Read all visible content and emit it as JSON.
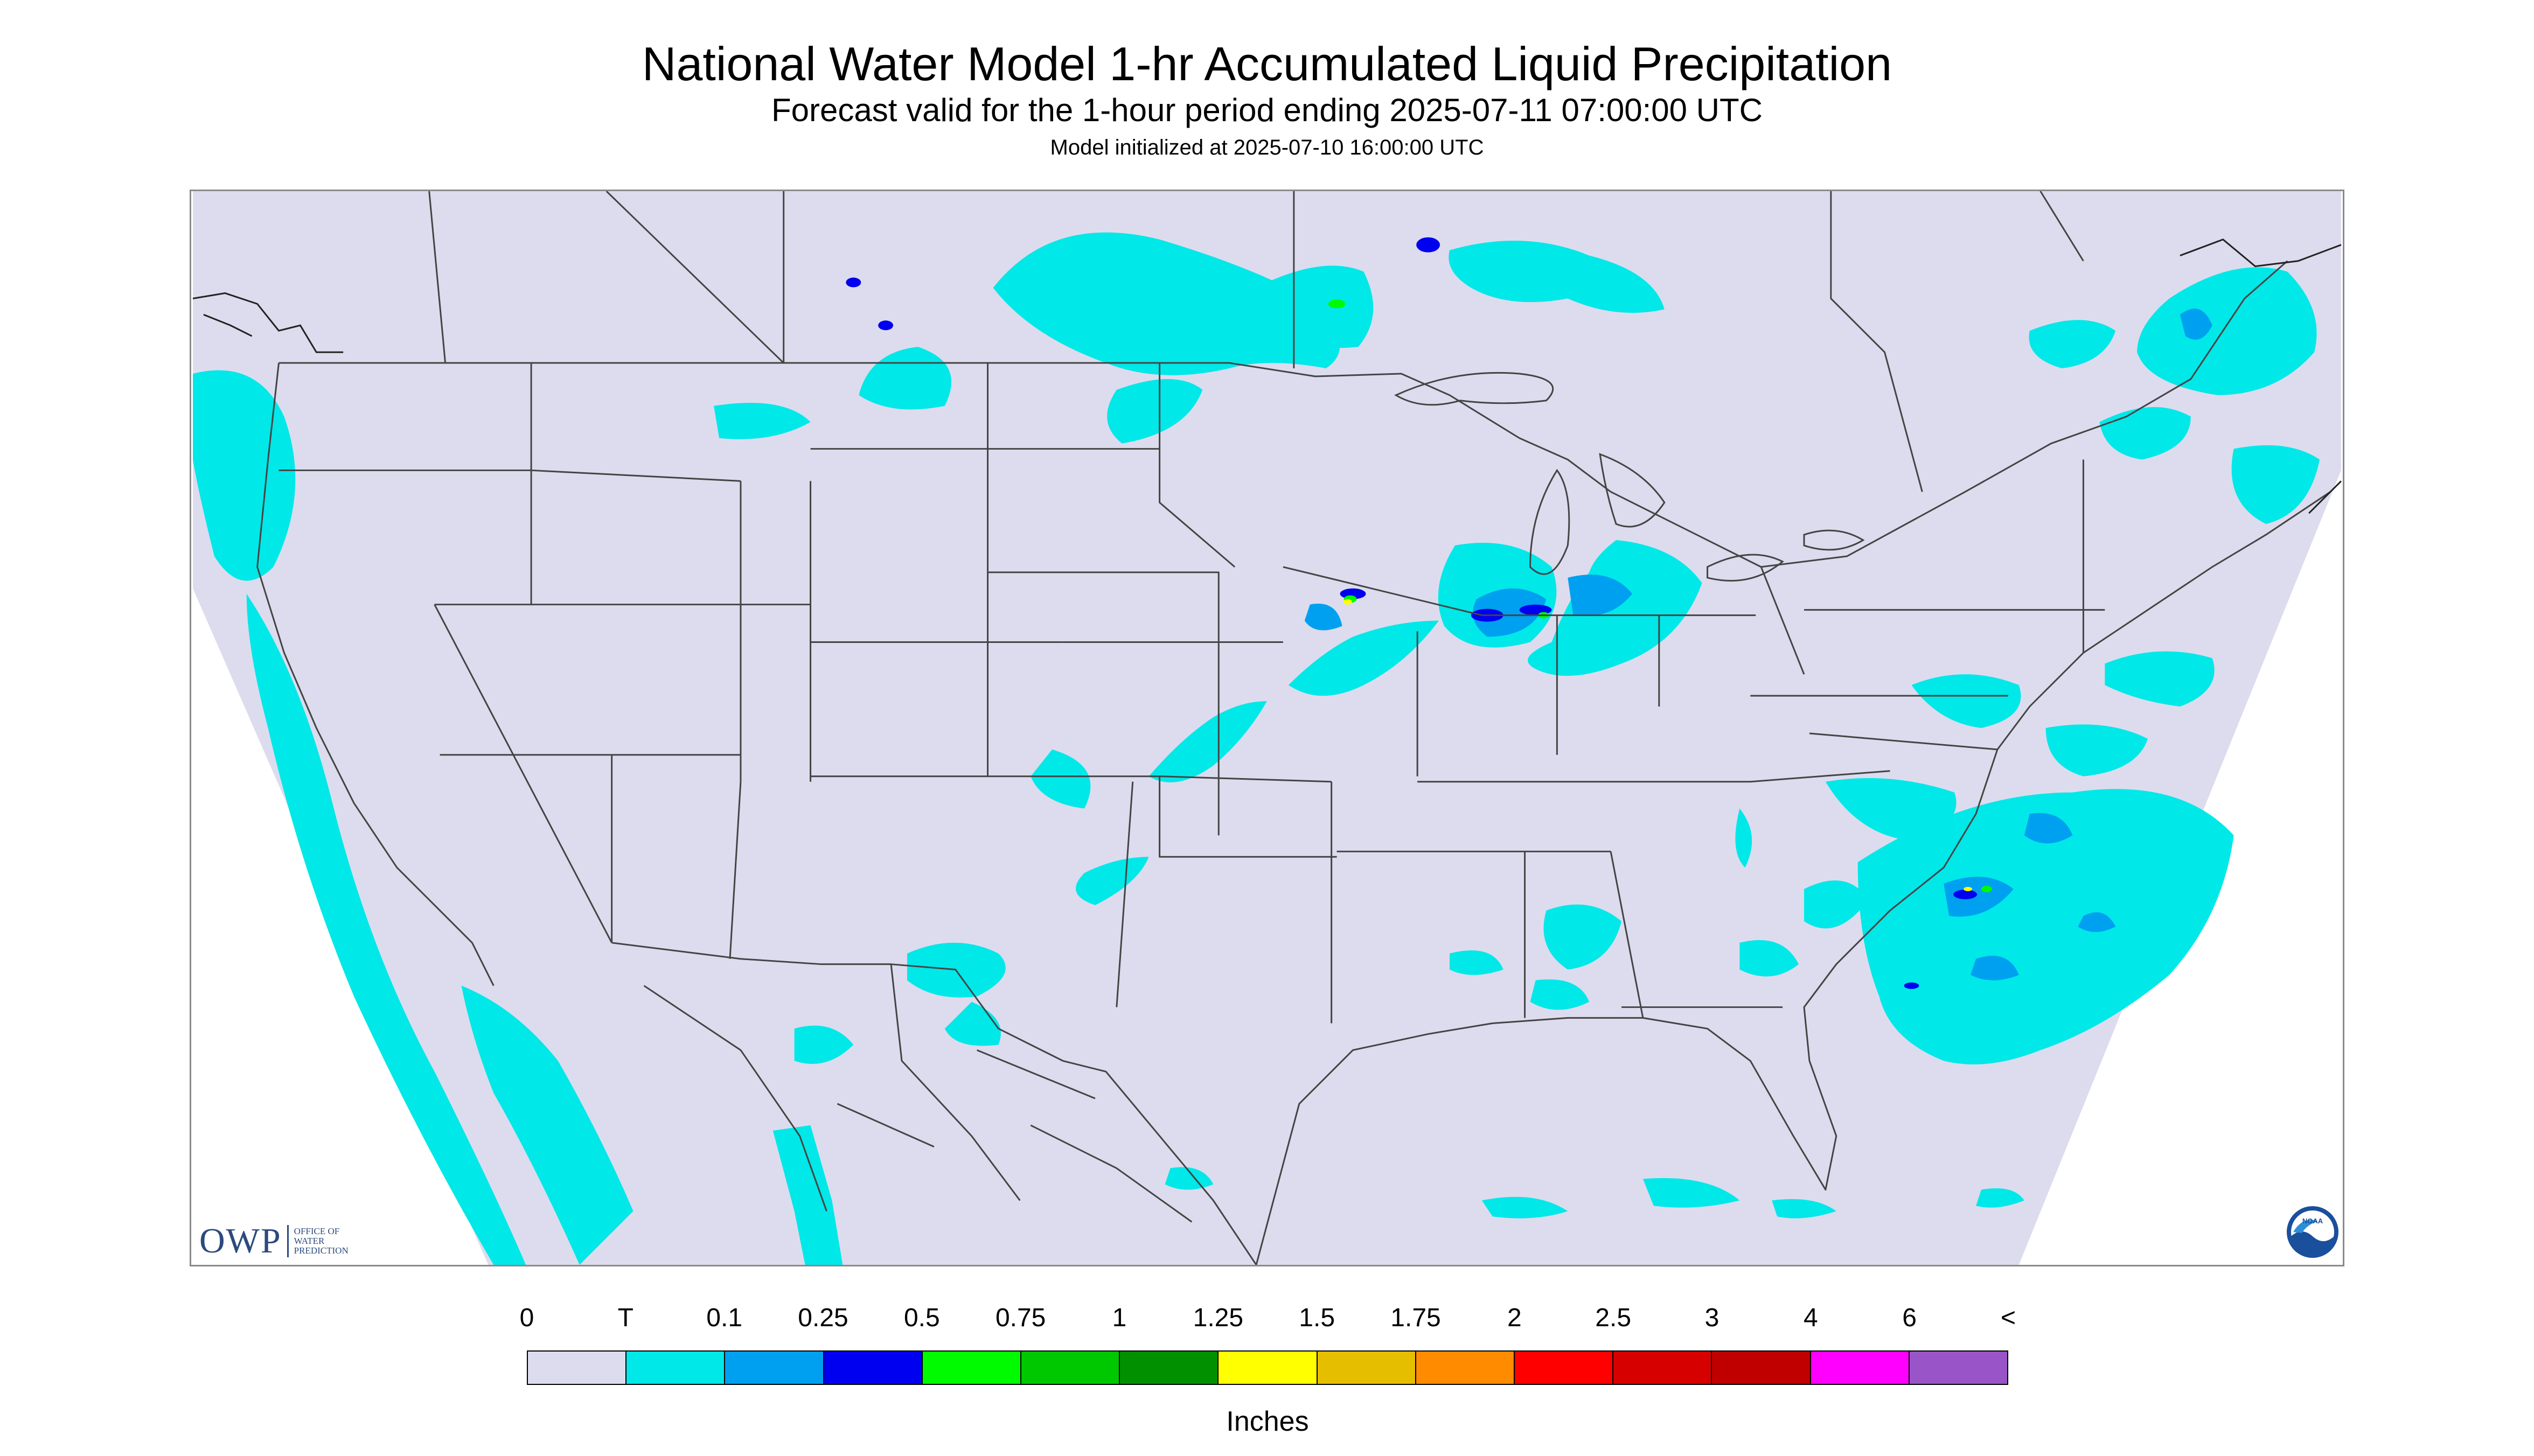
{
  "header": {
    "title": "National Water Model 1-hr Accumulated Liquid Precipitation",
    "subtitle": "Forecast valid for the 1-hour period ending 2025-07-11 07:00:00 UTC",
    "init": "Model initialized at 2025-07-10 16:00:00 UTC"
  },
  "logos": {
    "owp_mark": "OWP",
    "owp_words": [
      "OFFICE OF",
      "WATER",
      "PREDICTION"
    ],
    "noaa": "NOAA"
  },
  "legend": {
    "tick_labels": [
      "0",
      "T",
      "0.1",
      "0.25",
      "0.5",
      "0.75",
      "1",
      "1.25",
      "1.5",
      "1.75",
      "2",
      "2.5",
      "3",
      "4",
      "6",
      "<"
    ],
    "colors": [
      "#dcdcee",
      "#00e8e8",
      "#00a0f0",
      "#0000f0",
      "#00fa00",
      "#00c800",
      "#009000",
      "#ffff00",
      "#e6be00",
      "#ff8c00",
      "#ff0000",
      "#d70000",
      "#c00000",
      "#ff00ff",
      "#9955c8"
    ],
    "units": "Inches"
  },
  "map": {
    "domain_color": "#dcdcee",
    "outside_color": "#ffffff",
    "border_color": "#444444",
    "precip_colors": {
      "trace": "#00e8e8",
      "light": "#00a0f0",
      "moderate": "#0000f0",
      "heavy": "#00fa00",
      "heavier": "#009000",
      "very_heavy": "#ffff00"
    }
  }
}
